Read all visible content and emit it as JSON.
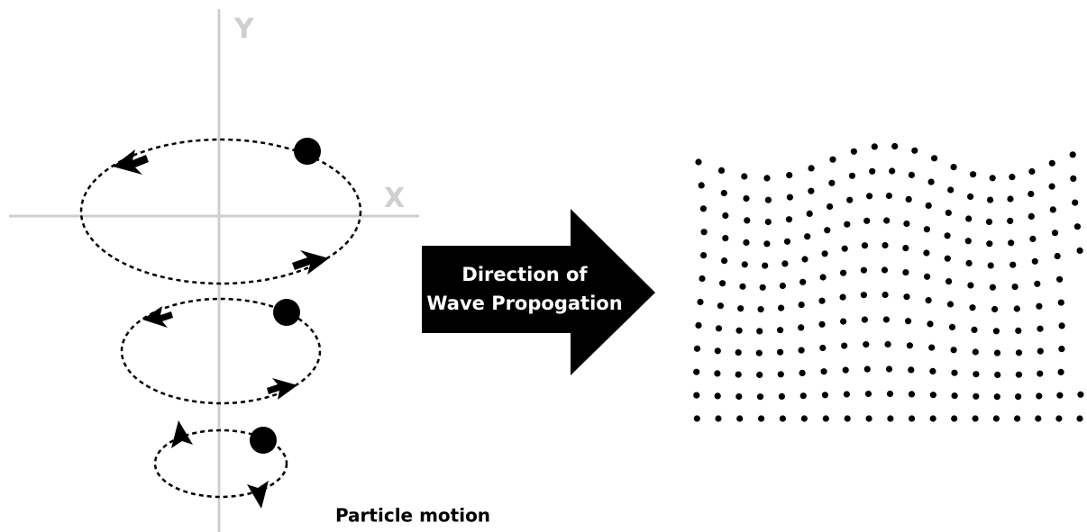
{
  "axes": {
    "y_label": "Y",
    "x_label": "X"
  },
  "arrow": {
    "lines": [
      "Direction of",
      "Wave Propogation"
    ]
  },
  "caption": "Particle motion"
}
